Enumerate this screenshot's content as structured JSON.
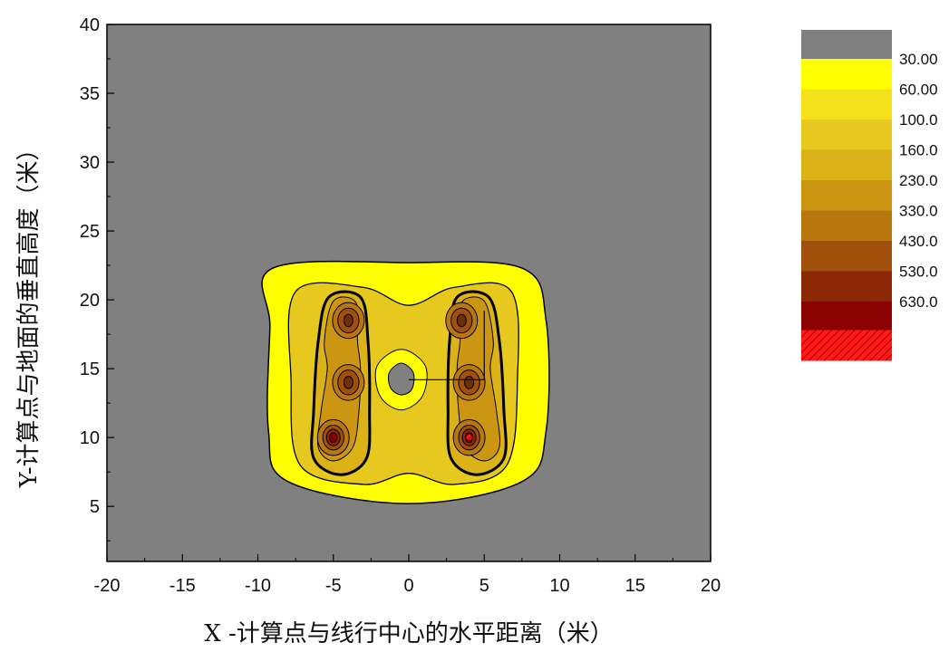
{
  "chart_data": {
    "type": "contour",
    "xlabel": "X -计算点与线行中心的水平距离（米）",
    "ylabel": "Y-计算点与地面的垂直高度（米）",
    "xlim": [
      -20,
      20
    ],
    "ylim": [
      1,
      40
    ],
    "x_ticks": [
      -20,
      -15,
      -10,
      -5,
      0,
      5,
      10,
      15,
      20
    ],
    "y_ticks": [
      5,
      10,
      15,
      20,
      25,
      30,
      35,
      40
    ],
    "grid": false,
    "legend_position": "right",
    "levels": [
      {
        "label": "30.00",
        "color": "#FFFF00"
      },
      {
        "label": "60.00",
        "color": "#F5E11A"
      },
      {
        "label": "100.0",
        "color": "#E6C81E"
      },
      {
        "label": "160.0",
        "color": "#DCB219"
      },
      {
        "label": "230.0",
        "color": "#CC9612"
      },
      {
        "label": "330.0",
        "color": "#B8780E"
      },
      {
        "label": "430.0",
        "color": "#A0500A"
      },
      {
        "label": "530.0",
        "color": "#8C2805"
      },
      {
        "label": "630.0",
        "color": "#8B0000"
      }
    ],
    "legend_top_color": "#808080",
    "legend_bottom_color": "#FF0000",
    "background_color": "#808080",
    "conductors": [
      {
        "x": -5,
        "y": 10
      },
      {
        "x": -4,
        "y": 14
      },
      {
        "x": -4,
        "y": 18.5
      },
      {
        "x": 4,
        "y": 10
      },
      {
        "x": 4,
        "y": 14
      },
      {
        "x": 3.5,
        "y": 18.5
      }
    ],
    "center_hole": {
      "x": -0.5,
      "y": 14.2
    },
    "bracket_line": {
      "x1": 0,
      "x2": 5,
      "y": 14.2,
      "y_top": 19.2
    }
  }
}
